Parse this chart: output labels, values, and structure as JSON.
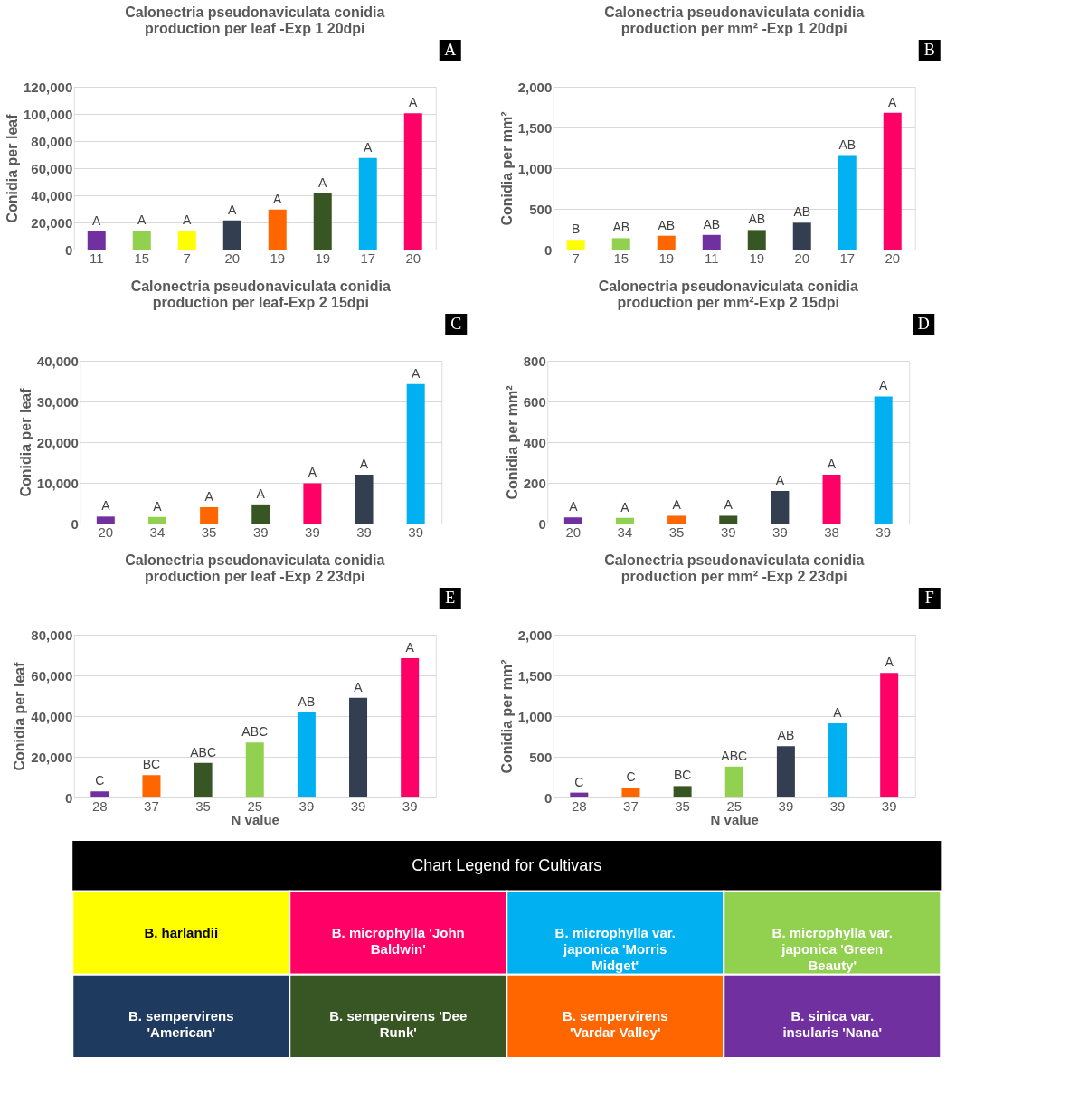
{
  "chart_data": [
    {
      "type": "bar",
      "title": "Calonectria pseudonaviculata conidia production per leaf -Exp 1 20dpi",
      "ylabel": "Conidia per leaf",
      "categories": [
        "11",
        "15",
        "7",
        "20",
        "19",
        "19",
        "17",
        "20"
      ],
      "values": [
        13500,
        14000,
        14000,
        21500,
        29500,
        41500,
        67500,
        100500
      ],
      "colors": [
        "#7030a0",
        "#92d050",
        "#ffff00",
        "#333f50",
        "#ff6600",
        "#375623",
        "#00b0f0",
        "#ff0066"
      ],
      "value_labels": [
        "A",
        "A",
        "A",
        "A",
        "A",
        "A",
        "A",
        "A"
      ],
      "ylim": [
        0,
        120000
      ],
      "yticks": [
        0,
        {
          "value": 20000,
          "label": "20,000"
        },
        {
          "value": 40000,
          "label": "40,000"
        },
        {
          "value": 60000,
          "label": "60,000"
        },
        {
          "value": 80000,
          "label": "80,000"
        },
        {
          "value": 100000,
          "label": "100,000"
        },
        {
          "value": 120000,
          "label": "120,000"
        }
      ],
      "grid": "y",
      "annotations": [
        "A"
      ]
    },
    {
      "type": "bar",
      "title": "Calonectria pseudonaviculata conidia production per mm² -Exp 1 20dpi",
      "ylabel": "Conidia per mm²",
      "categories": [
        "7",
        "15",
        "19",
        "11",
        "19",
        "20",
        "17",
        "20"
      ],
      "values": [
        120,
        140,
        170,
        180,
        240,
        330,
        1160,
        1680
      ],
      "colors": [
        "#ffff00",
        "#92d050",
        "#ff6600",
        "#7030a0",
        "#375623",
        "#333f50",
        "#00b0f0",
        "#ff0066"
      ],
      "value_labels": [
        "B",
        "AB",
        "AB",
        "AB",
        "AB",
        "AB",
        "AB",
        "A"
      ],
      "ylim": [
        0,
        2000
      ],
      "yticks": [
        0,
        500,
        {
          "value": 1000,
          "label": "1,000"
        },
        {
          "value": 1500,
          "label": "1,500"
        },
        {
          "value": 2000,
          "label": "2,000"
        }
      ],
      "grid": "y",
      "annotations": [
        "B"
      ]
    },
    {
      "type": "bar",
      "title": "Calonectria pseudonaviculata conidia production per leaf-Exp 2 15dpi",
      "ylabel": "Conidia per leaf",
      "categories": [
        "20",
        "34",
        "35",
        "39",
        "39",
        "39",
        "39"
      ],
      "values": [
        1700,
        1600,
        4000,
        4700,
        9900,
        12000,
        34300
      ],
      "colors": [
        "#7030a0",
        "#92d050",
        "#ff6600",
        "#375623",
        "#ff0066",
        "#333f50",
        "#00b0f0"
      ],
      "value_labels": [
        "A",
        "A",
        "A",
        "A",
        "A",
        "A",
        "A"
      ],
      "ylim": [
        0,
        40000
      ],
      "yticks": [
        0,
        {
          "value": 10000,
          "label": "10,000"
        },
        {
          "value": 20000,
          "label": "20,000"
        },
        {
          "value": 30000,
          "label": "30,000"
        },
        {
          "value": 40000,
          "label": "40,000"
        }
      ],
      "grid": "y",
      "annotations": [
        "C"
      ]
    },
    {
      "type": "bar",
      "title": "Calonectria pseudonaviculata conidia production per mm²-Exp 2 15dpi",
      "ylabel": "Conidia per mm²",
      "categories": [
        "20",
        "34",
        "35",
        "39",
        "39",
        "38",
        "39"
      ],
      "values": [
        30,
        28,
        38,
        38,
        160,
        240,
        625
      ],
      "colors": [
        "#7030a0",
        "#92d050",
        "#ff6600",
        "#375623",
        "#333f50",
        "#ff0066",
        "#00b0f0"
      ],
      "value_labels": [
        "A",
        "A",
        "A",
        "A",
        "A",
        "A",
        "A"
      ],
      "ylim": [
        0,
        800
      ],
      "yticks": [
        0,
        200,
        400,
        600,
        800
      ],
      "grid": "y",
      "annotations": [
        "D"
      ]
    },
    {
      "type": "bar",
      "title": "Calonectria pseudonaviculata conidia production per leaf -Exp 2 23dpi",
      "ylabel": "Conidia per leaf",
      "xlabel": "N value",
      "categories": [
        "28",
        "37",
        "35",
        "25",
        "39",
        "39",
        "39"
      ],
      "values": [
        3000,
        11000,
        17000,
        27000,
        42000,
        49000,
        68500
      ],
      "colors": [
        "#7030a0",
        "#ff6600",
        "#375623",
        "#92d050",
        "#00b0f0",
        "#333f50",
        "#ff0066"
      ],
      "value_labels": [
        "C",
        "BC",
        "ABC",
        "ABC",
        "AB",
        "A",
        "A"
      ],
      "ylim": [
        0,
        80000
      ],
      "yticks": [
        0,
        {
          "value": 20000,
          "label": "20,000"
        },
        {
          "value": 40000,
          "label": "40,000"
        },
        {
          "value": 60000,
          "label": "60,000"
        },
        {
          "value": 80000,
          "label": "80,000"
        }
      ],
      "grid": "y",
      "annotations": [
        "E"
      ]
    },
    {
      "type": "bar",
      "title": "Calonectria pseudonaviculata conidia production per mm² -Exp 2 23dpi",
      "ylabel": "Conidia per mm²",
      "xlabel": "N value",
      "categories": [
        "28",
        "37",
        "35",
        "25",
        "39",
        "39",
        "39"
      ],
      "values": [
        60,
        120,
        140,
        380,
        630,
        910,
        1530
      ],
      "colors": [
        "#7030a0",
        "#ff6600",
        "#375623",
        "#92d050",
        "#333f50",
        "#00b0f0",
        "#ff0066"
      ],
      "value_labels": [
        "C",
        "C",
        "BC",
        "ABC",
        "AB",
        "A",
        "A"
      ],
      "ylim": [
        0,
        2000
      ],
      "yticks": [
        0,
        500,
        {
          "value": 1000,
          "label": "1,000"
        },
        {
          "value": 1500,
          "label": "1,500"
        },
        {
          "value": 2000,
          "label": "2,000"
        }
      ],
      "grid": "y",
      "annotations": [
        "F"
      ]
    },
    {
      "type": "other",
      "title": "Chart Legend for Cultivars",
      "categories": [
        "B. harlandii",
        "B. microphylla 'John Baldwin'",
        "B. microphylla var. japonica 'Morris Midget'",
        "B. microphylla var. japonica 'Green Beauty'",
        "B. sempervirens 'American'",
        "B. sempervirens 'Dee Runk'",
        "B. sempervirens 'Vardar Valley'",
        "B. sinica var. insularis 'Nana'"
      ],
      "colors": [
        "#ffff00",
        "#ff0066",
        "#00b0f0",
        "#92d050",
        "#1f3a5f",
        "#375623",
        "#ff6600",
        "#7030a0"
      ]
    }
  ]
}
